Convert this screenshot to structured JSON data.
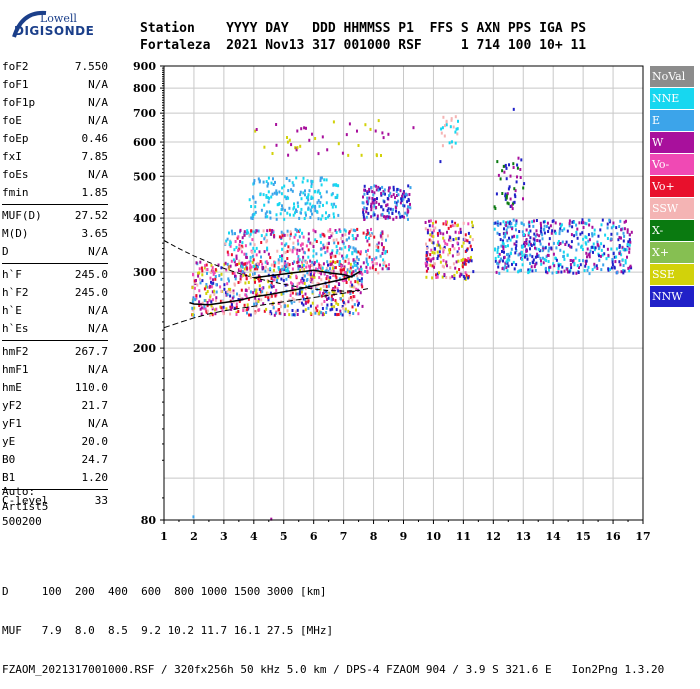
{
  "logo": {
    "line1": "Lowell",
    "line2": "DIGISONDE"
  },
  "header": {
    "labels": [
      "Station",
      "YYYY",
      "DAY",
      "DDD",
      "HHMMSS",
      "P1",
      "FFS",
      "S",
      "AXN",
      "PPS",
      "IGA",
      "PS"
    ],
    "values": [
      "Fortaleza",
      "2021",
      "Nov13",
      "317",
      "001000",
      "RSF",
      "",
      "1",
      "714",
      "100",
      "10+",
      "11"
    ]
  },
  "params": [
    [
      [
        "foF2",
        "7.550"
      ],
      [
        "foF1",
        "N/A"
      ],
      [
        "foF1p",
        "N/A"
      ],
      [
        "foE",
        "N/A"
      ],
      [
        "foEp",
        "0.46"
      ],
      [
        "fxI",
        "7.85"
      ],
      [
        "foEs",
        "N/A"
      ],
      [
        "fmin",
        "1.85"
      ]
    ],
    [
      [
        "MUF(D)",
        "27.52"
      ],
      [
        "M(D)",
        "3.65"
      ],
      [
        "D",
        "N/A"
      ]
    ],
    [
      [
        "h`F",
        "245.0"
      ],
      [
        "h`F2",
        "245.0"
      ],
      [
        "h`E",
        "N/A"
      ],
      [
        "h`Es",
        "N/A"
      ]
    ],
    [
      [
        "hmF2",
        "267.7"
      ],
      [
        "hmF1",
        "N/A"
      ],
      [
        "hmE",
        "110.0"
      ],
      [
        "yF2",
        "21.7"
      ],
      [
        "yF1",
        "N/A"
      ],
      [
        "yE",
        "20.0"
      ],
      [
        "B0",
        "24.7"
      ],
      [
        "B1",
        "1.20"
      ]
    ],
    [
      [
        "C-level",
        "33"
      ]
    ]
  ],
  "auto": {
    "line1": "Auto:",
    "line2": "Artist5",
    "line3": "500200"
  },
  "footer": {
    "line_d": "D     100  200  400  600  800 1000 1500 3000 [km]",
    "line_muf": "MUF   7.9  8.0  8.5  9.2 10.2 11.7 16.1 27.5 [MHz]",
    "line_info": "FZAOM_2021317001000.RSF / 320fx256h 50 kHz 5.0 km / DPS-4 FZAOM 904 / 3.9 S 321.6 E   Ion2Png 1.3.20"
  },
  "legend": [
    {
      "label": "NoVal",
      "color": "#8c8c8c"
    },
    {
      "label": "NNE",
      "color": "#17d7f0"
    },
    {
      "label": "E",
      "color": "#3ca4ea"
    },
    {
      "label": "W",
      "color": "#a8109c"
    },
    {
      "label": "Vo-",
      "color": "#f049b4"
    },
    {
      "label": "Vo+",
      "color": "#e8102c"
    },
    {
      "label": "SSW",
      "color": "#f4b4b4"
    },
    {
      "label": "X-",
      "color": "#0a7a10"
    },
    {
      "label": "X+",
      "color": "#86bf52"
    },
    {
      "label": "SSE",
      "color": "#d2d20a"
    },
    {
      "label": "NNW",
      "color": "#2020c8"
    }
  ],
  "chart_data": {
    "type": "scatter",
    "title": "",
    "xlabel": "",
    "ylabel": "",
    "xlim": [
      1,
      17
    ],
    "ylim": [
      80,
      900
    ],
    "y_scale": "log",
    "x_ticks": [
      1,
      2,
      3,
      4,
      5,
      6,
      7,
      8,
      9,
      10,
      11,
      12,
      13,
      14,
      15,
      16,
      17
    ],
    "y_ticks": [
      80,
      200,
      300,
      400,
      500,
      600,
      700,
      800,
      900
    ],
    "grid": true,
    "legend_position": "right",
    "o_trace_lower": {
      "x": [
        1.85,
        2.0,
        2.5,
        3.0,
        3.5,
        4.0,
        4.5,
        5.0,
        5.5,
        6.0,
        6.5,
        7.0,
        7.3,
        7.55
      ],
      "y": [
        255,
        253,
        252,
        255,
        258,
        263,
        266,
        270,
        274,
        279,
        284,
        289,
        294,
        301
      ]
    },
    "o_trace_upper": {
      "x": [
        4.0,
        4.5,
        5.0,
        5.5,
        6.0,
        6.5,
        7.0,
        7.3
      ],
      "y": [
        291,
        294,
        297,
        300,
        303,
        299,
        296,
        292
      ]
    },
    "profile_dashed": {
      "x": [
        1.0,
        1.5,
        2.0,
        2.5,
        3.0,
        3.5,
        4.0,
        4.5,
        5.0,
        5.5,
        6.0,
        6.5,
        7.0,
        7.5,
        7.85
      ],
      "y": [
        355,
        340,
        327,
        316,
        306,
        298,
        291,
        286,
        281,
        277,
        274,
        272,
        271,
        272,
        275
      ]
    },
    "profile_lower": {
      "x": [
        1.0,
        1.5,
        2.0,
        2.5,
        3.0,
        3.5,
        4.0,
        4.5,
        5.0,
        5.5,
        6.0,
        6.5,
        7.0,
        7.5
      ],
      "y": [
        223,
        229,
        235,
        240,
        244,
        247,
        250,
        253,
        256,
        259,
        262,
        265,
        268,
        272
      ]
    },
    "echo_clusters": [
      {
        "x": [
          1.9,
          7.6
        ],
        "y": [
          240,
          320
        ],
        "colors": [
          "e8102c",
          "d2d20a",
          "f049b4",
          "3ca4ea",
          "2020c8",
          "a8109c",
          "f4b4b4"
        ],
        "count": 700
      },
      {
        "x": [
          3.0,
          8.5
        ],
        "y": [
          300,
          380
        ],
        "colors": [
          "3ca4ea",
          "f049b4",
          "e8102c",
          "a8109c",
          "f4b4b4",
          "17d7f0"
        ],
        "count": 450
      },
      {
        "x": [
          3.8,
          6.8
        ],
        "y": [
          400,
          500
        ],
        "colors": [
          "3ca4ea",
          "17d7f0"
        ],
        "count": 180
      },
      {
        "x": [
          4.0,
          8.5
        ],
        "y": [
          560,
          690
        ],
        "colors": [
          "d2d20a",
          "a8109c"
        ],
        "count": 45
      },
      {
        "x": [
          7.6,
          9.2
        ],
        "y": [
          400,
          480
        ],
        "colors": [
          "2020c8",
          "a8109c",
          "3ca4ea"
        ],
        "count": 160
      },
      {
        "x": [
          9.7,
          11.3
        ],
        "y": [
          290,
          400
        ],
        "colors": [
          "e8102c",
          "f4b4b4",
          "f049b4",
          "a8109c",
          "d2d20a",
          "2020c8"
        ],
        "count": 200
      },
      {
        "x": [
          10.2,
          10.8
        ],
        "y": [
          580,
          700
        ],
        "colors": [
          "17d7f0",
          "f4b4b4"
        ],
        "count": 25
      },
      {
        "x": [
          12.0,
          16.6
        ],
        "y": [
          300,
          400
        ],
        "colors": [
          "2020c8",
          "17d7f0",
          "3ca4ea",
          "a8109c"
        ],
        "count": 520
      },
      {
        "x": [
          12.0,
          13.0
        ],
        "y": [
          420,
          560
        ],
        "colors": [
          "2020c8",
          "0a7a10",
          "a8109c"
        ],
        "count": 50
      }
    ],
    "isolated_points": [
      {
        "x": 1.95,
        "y": 82,
        "color": "3ca4ea"
      },
      {
        "x": 4.55,
        "y": 81,
        "color": "a8109c"
      },
      {
        "x": 12.65,
        "y": 720,
        "color": "2020c8"
      },
      {
        "x": 9.3,
        "y": 653,
        "color": "a8109c"
      },
      {
        "x": 10.2,
        "y": 545,
        "color": "2020c8"
      },
      {
        "x": 12.1,
        "y": 545,
        "color": "0a7a10"
      }
    ]
  }
}
